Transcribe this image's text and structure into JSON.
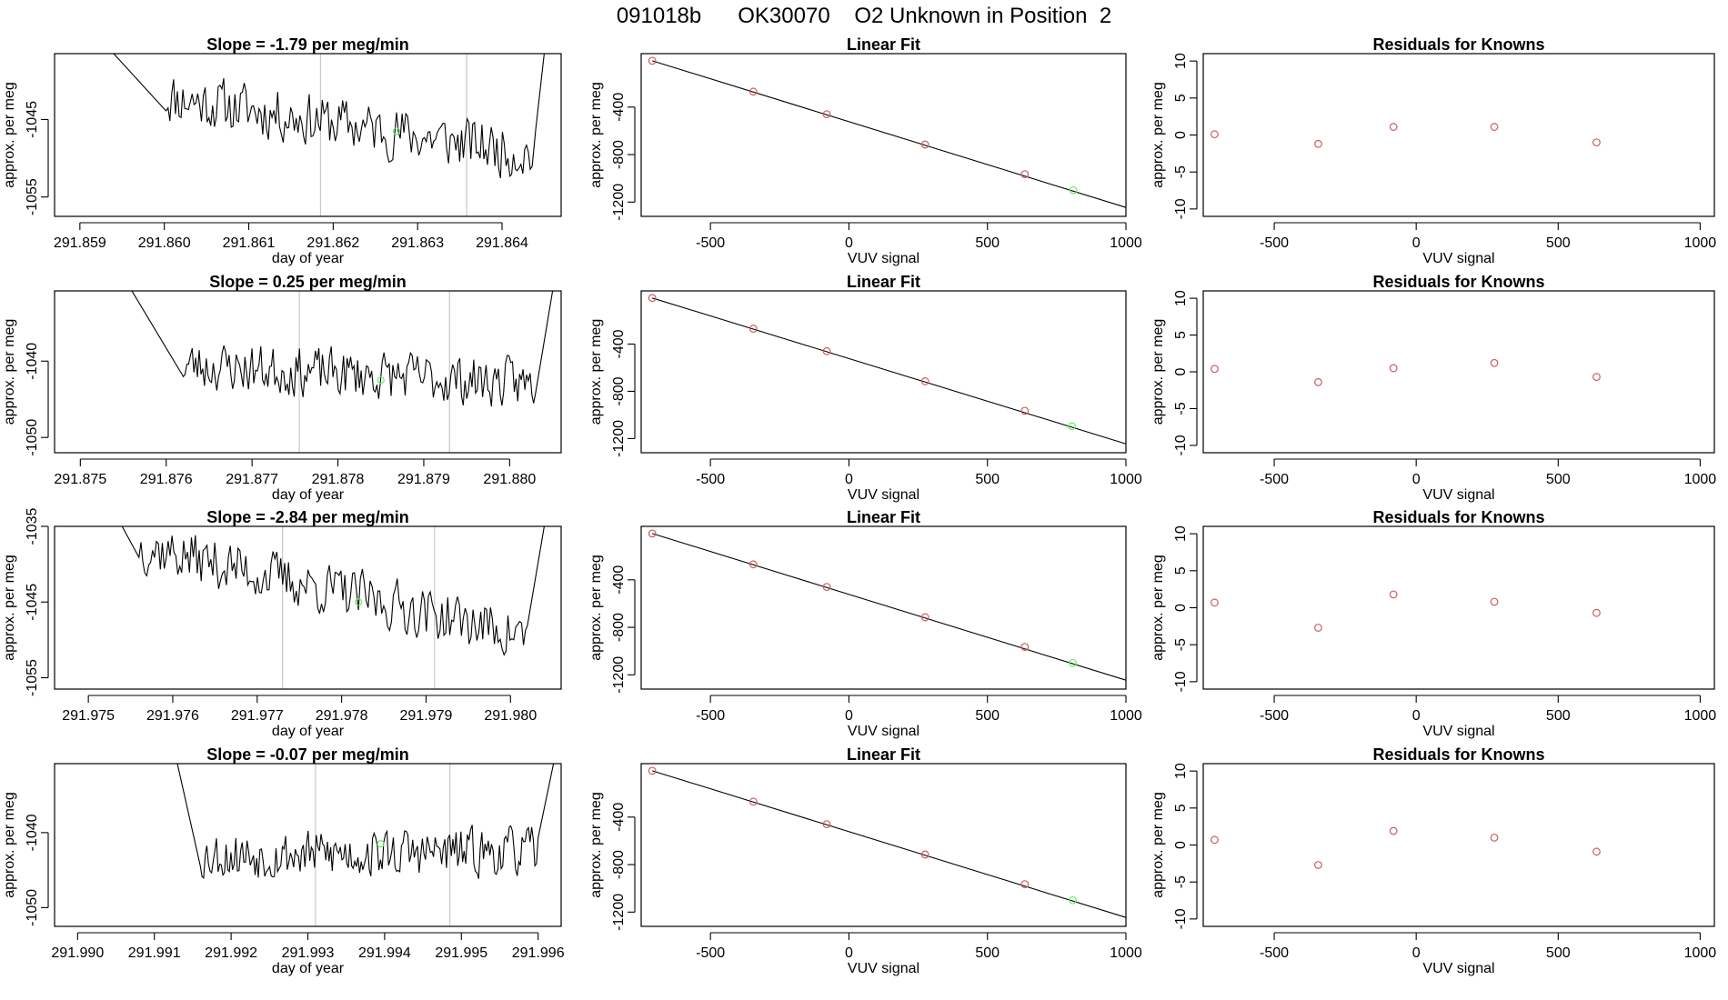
{
  "figure": {
    "title": "091018b      OK30070    O2 Unknown in Position  2",
    "colors": {
      "axis": "#000000",
      "trace": "#000000",
      "known_point": "#cd5c5c",
      "unknown_point": "#66ee66",
      "vline": "#c8c8c8"
    }
  },
  "chart_data": [
    {
      "type": "line",
      "panel": "time-series",
      "row": 1,
      "title": "Slope =  -1.79  per meg/min",
      "xlabel": "day of year",
      "ylabel": "approx. per meg",
      "xlim": [
        291.8587,
        291.8647
      ],
      "ylim": [
        -1057.5,
        -1036.5
      ],
      "xticks": [
        291.859,
        291.86,
        291.861,
        291.862,
        291.863,
        291.864
      ],
      "xtick_labels": [
        "291.859",
        "291.860",
        "291.861",
        "291.862",
        "291.863",
        "291.864"
      ],
      "yticks": [
        -1045,
        -1055
      ],
      "ytick_labels": [
        "-1045",
        "-1055"
      ],
      "vlines": [
        291.86185,
        291.86358
      ],
      "trace": {
        "start_x": 291.8594,
        "start_y": -1036.5,
        "end_x": 291.8645,
        "end_y": -1036.5,
        "base_start_x": 291.86,
        "base_end_x": 291.8644,
        "base_start": -1042.0,
        "base_end": -1049.5,
        "noise": 1.6,
        "seed": 11,
        "n": 200
      },
      "unknown_point": {
        "x": 291.86275,
        "y": -1046.5
      }
    },
    {
      "type": "scatter",
      "panel": "linear-fit",
      "row": 1,
      "title": "Linear Fit",
      "xlabel": "VUV signal",
      "ylabel": "approx. per meg",
      "xlim": [
        -750,
        1000
      ],
      "ylim": [
        -1320,
        50
      ],
      "xticks": [
        -500,
        0,
        500,
        1000
      ],
      "xtick_labels": [
        "-500",
        "0",
        "500",
        "1000"
      ],
      "yticks": [
        -400,
        -800,
        -1200
      ],
      "ytick_labels": [
        "-400",
        "-800",
        "-1200"
      ],
      "fit_line": {
        "x": [
          -710,
          1000
        ],
        "y": [
          -10,
          -1245
        ]
      },
      "knowns": {
        "x": [
          -710,
          -345,
          -80,
          275,
          635
        ],
        "y": [
          -10,
          -270,
          -460,
          -715,
          -965
        ]
      },
      "unknown": {
        "x": 810,
        "y": -1100
      }
    },
    {
      "type": "scatter",
      "panel": "residuals",
      "row": 1,
      "title": "Residuals for Knowns",
      "xlabel": "VUV signal",
      "ylabel": "approx. per meg",
      "xlim": [
        -750,
        1050
      ],
      "ylim": [
        -11,
        11
      ],
      "xticks": [
        -500,
        0,
        500,
        1000
      ],
      "xtick_labels": [
        "-500",
        "0",
        "500",
        "1000"
      ],
      "yticks": [
        10,
        5,
        0,
        -5,
        -10
      ],
      "ytick_labels": [
        "10",
        "5",
        "0",
        "-5",
        "-10"
      ],
      "points": {
        "x": [
          -710,
          -345,
          -80,
          275,
          635
        ],
        "y": [
          0.1,
          -1.2,
          1.1,
          1.1,
          -1.0
        ]
      }
    },
    {
      "type": "line",
      "panel": "time-series",
      "row": 2,
      "title": "Slope =  0.25  per meg/min",
      "xlabel": "day of year",
      "ylabel": "approx. per meg",
      "xlim": [
        291.8747,
        291.8806
      ],
      "ylim": [
        -1052,
        -1030.8
      ],
      "xticks": [
        291.875,
        291.876,
        291.877,
        291.878,
        291.879,
        291.88
      ],
      "xtick_labels": [
        "291.875",
        "291.876",
        "291.877",
        "291.878",
        "291.879",
        "291.880"
      ],
      "yticks": [
        -1040,
        -1050
      ],
      "ytick_labels": [
        "-1040",
        "-1050"
      ],
      "vlines": [
        291.87755,
        291.8793
      ],
      "trace": {
        "start_x": 291.8756,
        "start_y": -1030.8,
        "end_x": 291.8805,
        "end_y": -1030.8,
        "base_start_x": 291.8762,
        "base_end_x": 291.8803,
        "base_start": -1040.5,
        "base_end": -1043.0,
        "noise": 1.5,
        "seed": 23,
        "n": 200
      },
      "unknown_point": {
        "x": 291.8785,
        "y": -1042.5
      }
    },
    {
      "type": "scatter",
      "panel": "linear-fit",
      "row": 2,
      "title": "Linear Fit",
      "xlabel": "VUV signal",
      "ylabel": "approx. per meg",
      "xlim": [
        -750,
        1000
      ],
      "ylim": [
        -1320,
        50
      ],
      "xticks": [
        -500,
        0,
        500,
        1000
      ],
      "xtick_labels": [
        "-500",
        "0",
        "500",
        "1000"
      ],
      "yticks": [
        -400,
        -800,
        -1200
      ],
      "ytick_labels": [
        "-400",
        "-800",
        "-1200"
      ],
      "fit_line": {
        "x": [
          -710,
          1000
        ],
        "y": [
          -10,
          -1245
        ]
      },
      "knowns": {
        "x": [
          -710,
          -345,
          -80,
          275,
          635
        ],
        "y": [
          -10,
          -270,
          -460,
          -715,
          -965
        ]
      },
      "unknown": {
        "x": 805,
        "y": -1095
      }
    },
    {
      "type": "scatter",
      "panel": "residuals",
      "row": 2,
      "title": "Residuals for Knowns",
      "xlabel": "VUV signal",
      "ylabel": "approx. per meg",
      "xlim": [
        -750,
        1050
      ],
      "ylim": [
        -11,
        11
      ],
      "xticks": [
        -500,
        0,
        500,
        1000
      ],
      "xtick_labels": [
        "-500",
        "0",
        "500",
        "1000"
      ],
      "yticks": [
        10,
        5,
        0,
        -5,
        -10
      ],
      "ytick_labels": [
        "10",
        "5",
        "0",
        "-5",
        "-10"
      ],
      "points": {
        "x": [
          -710,
          -345,
          -80,
          275,
          635
        ],
        "y": [
          0.4,
          -1.4,
          0.5,
          1.2,
          -0.7
        ]
      }
    },
    {
      "type": "line",
      "panel": "time-series",
      "row": 3,
      "title": "Slope =  -2.84  per meg/min",
      "xlabel": "day of year",
      "ylabel": "approx. per meg",
      "xlim": [
        291.9746,
        291.9806
      ],
      "ylim": [
        -1056.5,
        -1035
      ],
      "xticks": [
        291.975,
        291.976,
        291.977,
        291.978,
        291.979,
        291.98
      ],
      "xtick_labels": [
        "291.975",
        "291.976",
        "291.977",
        "291.978",
        "291.979",
        "291.980"
      ],
      "yticks": [
        -1035,
        -1045,
        -1055
      ],
      "ytick_labels": [
        "-1035",
        "-1045",
        "-1055"
      ],
      "vlines": [
        291.9773,
        291.9791
      ],
      "trace": {
        "start_x": 291.9754,
        "start_y": -1035,
        "end_x": 291.9804,
        "end_y": -1035,
        "base_start_x": 291.9756,
        "base_end_x": 291.9802,
        "base_start": -1037.5,
        "base_end": -1049.5,
        "noise": 1.6,
        "seed": 37,
        "n": 200
      },
      "unknown_point": {
        "x": 291.9782,
        "y": -1045.0
      }
    },
    {
      "type": "scatter",
      "panel": "linear-fit",
      "row": 3,
      "title": "Linear Fit",
      "xlabel": "VUV signal",
      "ylabel": "approx. per meg",
      "xlim": [
        -750,
        1000
      ],
      "ylim": [
        -1320,
        50
      ],
      "xticks": [
        -500,
        0,
        500,
        1000
      ],
      "xtick_labels": [
        "-500",
        "0",
        "500",
        "1000"
      ],
      "yticks": [
        -400,
        -800,
        -1200
      ],
      "ytick_labels": [
        "-400",
        "-800",
        "-1200"
      ],
      "fit_line": {
        "x": [
          -710,
          1000
        ],
        "y": [
          -10,
          -1245
        ]
      },
      "knowns": {
        "x": [
          -710,
          -345,
          -80,
          275,
          635
        ],
        "y": [
          -10,
          -270,
          -460,
          -715,
          -965
        ]
      },
      "unknown": {
        "x": 808,
        "y": -1100
      }
    },
    {
      "type": "scatter",
      "panel": "residuals",
      "row": 3,
      "title": "Residuals for Knowns",
      "xlabel": "VUV signal",
      "ylabel": "approx. per meg",
      "xlim": [
        -750,
        1050
      ],
      "ylim": [
        -11,
        11
      ],
      "xticks": [
        -500,
        0,
        500,
        1000
      ],
      "xtick_labels": [
        "-500",
        "0",
        "500",
        "1000"
      ],
      "yticks": [
        10,
        5,
        0,
        -5,
        -10
      ],
      "ytick_labels": [
        "10",
        "5",
        "0",
        "-5",
        "-10"
      ],
      "points": {
        "x": [
          -710,
          -345,
          -80,
          275,
          635
        ],
        "y": [
          0.7,
          -2.7,
          1.8,
          0.8,
          -0.7
        ]
      }
    },
    {
      "type": "line",
      "panel": "time-series",
      "row": 4,
      "title": "Slope =  -0.07  per meg/min",
      "xlabel": "day of year",
      "ylabel": "approx. per meg",
      "xlim": [
        291.9897,
        291.9963
      ],
      "ylim": [
        -1052.5,
        -1030.8
      ],
      "xticks": [
        291.99,
        291.991,
        291.992,
        291.993,
        291.994,
        291.995,
        291.996
      ],
      "xtick_labels": [
        "291.990",
        "291.991",
        "291.992",
        "291.993",
        "291.994",
        "291.995",
        "291.996"
      ],
      "yticks": [
        -1040,
        -1050
      ],
      "ytick_labels": [
        "-1040",
        "-1050"
      ],
      "vlines": [
        291.9931,
        291.99485
      ],
      "trace": {
        "start_x": 291.9913,
        "start_y": -1030.8,
        "end_x": 291.9962,
        "end_y": -1030.8,
        "base_start_x": 291.9916,
        "base_end_x": 291.996,
        "base_start": -1043.0,
        "base_end": -1042.5,
        "noise": 1.5,
        "seed": 53,
        "n": 210
      },
      "unknown_point": {
        "x": 291.99395,
        "y": -1041.5
      }
    },
    {
      "type": "scatter",
      "panel": "linear-fit",
      "row": 4,
      "title": "Linear Fit",
      "xlabel": "VUV signal",
      "ylabel": "approx. per meg",
      "xlim": [
        -750,
        1000
      ],
      "ylim": [
        -1320,
        50
      ],
      "xticks": [
        -500,
        0,
        500,
        1000
      ],
      "xtick_labels": [
        "-500",
        "0",
        "500",
        "1000"
      ],
      "yticks": [
        -400,
        -800,
        -1200
      ],
      "ytick_labels": [
        "-400",
        "-800",
        "-1200"
      ],
      "fit_line": {
        "x": [
          -710,
          1000
        ],
        "y": [
          -10,
          -1245
        ]
      },
      "knowns": {
        "x": [
          -710,
          -345,
          -80,
          275,
          635
        ],
        "y": [
          -10,
          -270,
          -460,
          -715,
          -965
        ]
      },
      "unknown": {
        "x": 808,
        "y": -1100
      }
    },
    {
      "type": "scatter",
      "panel": "residuals",
      "row": 4,
      "title": "Residuals for Knowns",
      "xlabel": "VUV signal",
      "ylabel": "approx. per meg",
      "xlim": [
        -750,
        1050
      ],
      "ylim": [
        -11,
        11
      ],
      "xticks": [
        -500,
        0,
        500,
        1000
      ],
      "xtick_labels": [
        "-500",
        "0",
        "500",
        "1000"
      ],
      "yticks": [
        10,
        5,
        0,
        -5,
        -10
      ],
      "ytick_labels": [
        "10",
        "5",
        "0",
        "-5",
        "-10"
      ],
      "points": {
        "x": [
          -710,
          -345,
          -80,
          275,
          635
        ],
        "y": [
          0.7,
          -2.7,
          1.9,
          1.0,
          -0.9
        ]
      }
    }
  ]
}
